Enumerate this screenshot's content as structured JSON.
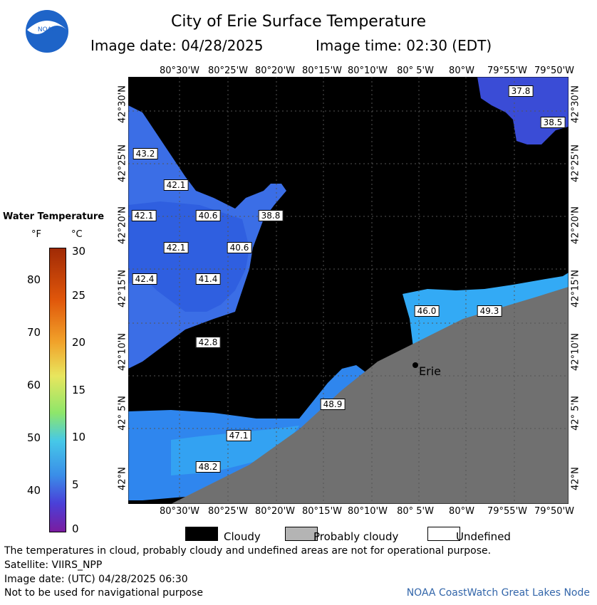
{
  "header": {
    "title": "City of Erie Surface Temperature",
    "image_date": "Image date: 04/28/2025",
    "image_time": "Image time: 02:30 (EDT)"
  },
  "map": {
    "lon_labels": [
      "80°30'W",
      "80°25'W",
      "80°20'W",
      "80°15'W",
      "80°10'W",
      "80° 5'W",
      "80°W",
      "79°55'W",
      "79°50'W"
    ],
    "lat_labels": [
      "42°30'N",
      "42°25'N",
      "42°20'N",
      "42°15'N",
      "42°10'N",
      "42° 5'N",
      "42°N"
    ],
    "city": "Erie",
    "temperature_labels": [
      "37.8",
      "38.5",
      "43.2",
      "42.1",
      "42.1",
      "40.6",
      "38.8",
      "42.1",
      "40.6",
      "42.4",
      "41.4",
      "46.0",
      "49.3",
      "42.8",
      "48.9",
      "47.1",
      "48.2"
    ]
  },
  "legend": {
    "title": "Water Temperature",
    "unit_f": "°F",
    "unit_c": "°C",
    "f_ticks": [
      "80",
      "70",
      "60",
      "50",
      "40"
    ],
    "c_ticks": [
      "30",
      "25",
      "20",
      "15",
      "10",
      "5",
      "0"
    ]
  },
  "key": {
    "cloudy": "Cloudy",
    "probably_cloudy": "Probably cloudy",
    "undefined": "Undefined"
  },
  "footer": {
    "note": "The temperatures in cloud, probably cloudy and undefined areas are not for operational purpose.",
    "satellite": "Satellite: VIIRS_NPP",
    "utc_date": "Image date: (UTC) 04/28/2025  06:30",
    "navigation": "Not to be used for navigational purpose",
    "credit": "NOAA CoastWatch Great Lakes Node"
  },
  "colors": {
    "cloud": "#000000",
    "land": "#707070",
    "probably_cloudy": "#b4b4b4",
    "water_cold": "#3b63e0",
    "water_warm": "#31a8f5",
    "noaa_blue": "#1e64c8"
  }
}
